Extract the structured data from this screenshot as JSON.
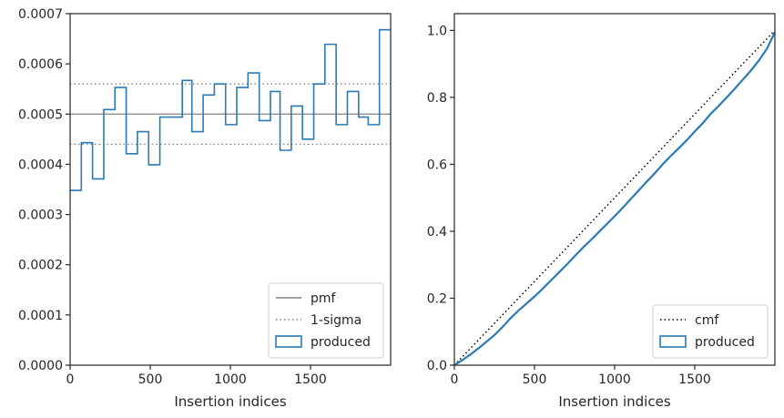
{
  "chart_data": [
    {
      "type": "line",
      "drawstyle": "steps",
      "xlabel": "Insertion indices",
      "ylabel": "",
      "xlim": [
        0,
        2000
      ],
      "ylim": [
        0,
        0.0007
      ],
      "xticks": [
        0,
        500,
        1000,
        1500
      ],
      "xtick_labels": [
        "0",
        "500",
        "1000",
        "1500"
      ],
      "yticks": [
        0,
        0.0001,
        0.0002,
        0.0003,
        0.0004,
        0.0005,
        0.0006,
        0.0007
      ],
      "ytick_labels": [
        "0.0000",
        "0.0001",
        "0.0002",
        "0.0003",
        "0.0004",
        "0.0005",
        "0.0006",
        "0.0007"
      ],
      "legend_position": "lower right",
      "hlines": [
        {
          "name": "pmf",
          "y": 0.0005,
          "style": "solid",
          "color": "#808080"
        },
        {
          "name": "1-sigma",
          "y": 0.00056,
          "style": "dotted",
          "color": "#808080"
        },
        {
          "name": "1-sigma",
          "y": 0.00044,
          "style": "dotted",
          "color": "#808080"
        }
      ],
      "series": [
        {
          "name": "produced",
          "color": "#2a7ab5",
          "bin_edges": [
            0,
            70,
            140,
            210,
            280,
            350,
            420,
            490,
            560,
            630,
            700,
            760,
            830,
            900,
            970,
            1040,
            1110,
            1180,
            1250,
            1310,
            1380,
            1450,
            1520,
            1590,
            1660,
            1730,
            1800,
            1860,
            1930,
            2000
          ],
          "values": [
            0.000348,
            0.000443,
            0.000371,
            0.000509,
            0.000553,
            0.000421,
            0.000465,
            0.000399,
            0.000494,
            0.000494,
            0.000567,
            0.000465,
            0.000538,
            0.00056,
            0.000479,
            0.000553,
            0.000582,
            0.000487,
            0.000545,
            0.000428,
            0.000516,
            0.00045,
            0.00056,
            0.000639,
            0.000479,
            0.000545,
            0.000494,
            0.000479,
            0.000668
          ]
        }
      ]
    },
    {
      "type": "line",
      "xlabel": "Insertion indices",
      "ylabel": "",
      "xlim": [
        0,
        2000
      ],
      "ylim": [
        0,
        1.05
      ],
      "xticks": [
        0,
        500,
        1000,
        1500
      ],
      "xtick_labels": [
        "0",
        "500",
        "1000",
        "1500"
      ],
      "yticks": [
        0,
        0.2,
        0.4,
        0.6,
        0.8,
        1.0
      ],
      "ytick_labels": [
        "0.0",
        "0.2",
        "0.4",
        "0.6",
        "0.8",
        "1.0"
      ],
      "legend_position": "lower right",
      "series": [
        {
          "name": "cmf",
          "style": "dotted",
          "color": "#000000",
          "x": [
            0,
            2000
          ],
          "y": [
            0,
            1.0
          ]
        },
        {
          "name": "produced",
          "style": "solid",
          "color": "#2a7ab5",
          "x": [
            0,
            50,
            100,
            150,
            200,
            250,
            300,
            350,
            400,
            450,
            500,
            550,
            600,
            650,
            700,
            750,
            800,
            850,
            900,
            950,
            1000,
            1050,
            1100,
            1150,
            1200,
            1250,
            1300,
            1350,
            1400,
            1450,
            1500,
            1550,
            1600,
            1650,
            1700,
            1750,
            1800,
            1850,
            1900,
            1950,
            2000
          ],
          "y": [
            0,
            0.015,
            0.032,
            0.05,
            0.07,
            0.09,
            0.114,
            0.14,
            0.163,
            0.184,
            0.205,
            0.228,
            0.252,
            0.276,
            0.3,
            0.325,
            0.35,
            0.373,
            0.397,
            0.421,
            0.445,
            0.47,
            0.496,
            0.522,
            0.548,
            0.573,
            0.6,
            0.625,
            0.648,
            0.672,
            0.698,
            0.723,
            0.751,
            0.775,
            0.8,
            0.826,
            0.853,
            0.88,
            0.91,
            0.945,
            0.995
          ]
        }
      ]
    }
  ]
}
